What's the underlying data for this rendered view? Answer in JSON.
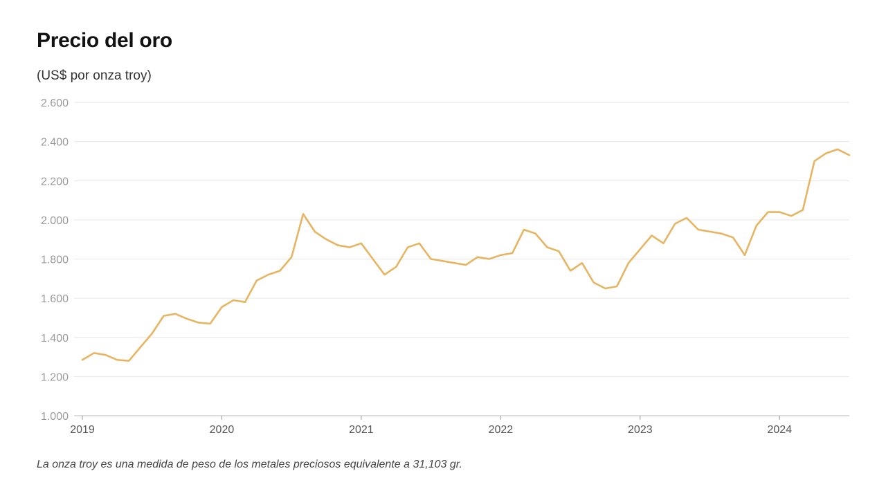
{
  "header": {
    "title": "Precio del oro",
    "subtitle": "(US$ por onza troy)"
  },
  "footer": {
    "note": "La onza troy es una medida de peso de los metales preciosos equivalente a 31,103 gr."
  },
  "chart_data": {
    "type": "line",
    "title": "Precio del oro",
    "subtitle": "(US$ por onza troy)",
    "xlabel": "",
    "ylabel": "",
    "ylim": [
      1000,
      2600
    ],
    "xlim": [
      "2019-01",
      "2024-07"
    ],
    "y_ticks": [
      1000,
      1200,
      1400,
      1600,
      1800,
      2000,
      2200,
      2400,
      2600
    ],
    "y_tick_labels": [
      "1.000",
      "1.200",
      "1.400",
      "1.600",
      "1.800",
      "2.000",
      "2.200",
      "2.400",
      "2.600"
    ],
    "x_ticks": [
      "2019-01",
      "2020-01",
      "2021-01",
      "2022-01",
      "2023-01",
      "2024-01"
    ],
    "x_tick_labels": [
      "2019",
      "2020",
      "2021",
      "2022",
      "2023",
      "2024"
    ],
    "grid": "horizontal",
    "color": "#e7b562",
    "series": [
      {
        "x": [
          "2019-01",
          "2019-02",
          "2019-03",
          "2019-04",
          "2019-05",
          "2019-06",
          "2019-07",
          "2019-08",
          "2019-09",
          "2019-10",
          "2019-11",
          "2019-12",
          "2020-01",
          "2020-02",
          "2020-03",
          "2020-04",
          "2020-05",
          "2020-06",
          "2020-07",
          "2020-08",
          "2020-09",
          "2020-10",
          "2020-11",
          "2020-12",
          "2021-01",
          "2021-02",
          "2021-03",
          "2021-04",
          "2021-05",
          "2021-06",
          "2021-07",
          "2021-08",
          "2021-09",
          "2021-10",
          "2021-11",
          "2021-12",
          "2022-01",
          "2022-02",
          "2022-03",
          "2022-04",
          "2022-05",
          "2022-06",
          "2022-07",
          "2022-08",
          "2022-09",
          "2022-10",
          "2022-11",
          "2022-12",
          "2023-01",
          "2023-02",
          "2023-03",
          "2023-04",
          "2023-05",
          "2023-06",
          "2023-07",
          "2023-08",
          "2023-09",
          "2023-10",
          "2023-11",
          "2023-12",
          "2024-01",
          "2024-02",
          "2024-03",
          "2024-04",
          "2024-05",
          "2024-06",
          "2024-07"
        ],
        "values": [
          1285,
          1320,
          1310,
          1285,
          1280,
          1350,
          1420,
          1510,
          1520,
          1495,
          1475,
          1470,
          1555,
          1590,
          1580,
          1690,
          1720,
          1740,
          1810,
          2030,
          1940,
          1900,
          1870,
          1860,
          1880,
          1800,
          1720,
          1760,
          1860,
          1880,
          1800,
          1790,
          1780,
          1770,
          1810,
          1800,
          1820,
          1830,
          1950,
          1930,
          1860,
          1840,
          1740,
          1780,
          1680,
          1650,
          1660,
          1780,
          1850,
          1920,
          1880,
          1980,
          2010,
          1950,
          1940,
          1930,
          1910,
          1820,
          1970,
          2040,
          2040,
          2020,
          2050,
          2300,
          2340,
          2360,
          2330
        ]
      }
    ]
  }
}
